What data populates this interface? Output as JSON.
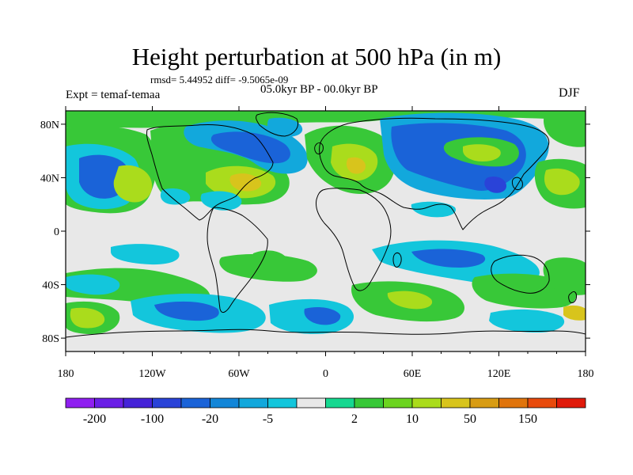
{
  "title": "Height perturbation at 500 hPa (in m)",
  "stats": "rmsd= 5.44952  diff= -9.5065e-09",
  "left_label": "Expt = temaf-temaa",
  "period": "05.0kyr BP - 00.0kyr BP",
  "season": "DJF",
  "lat_labels": [
    "80N",
    "40N",
    "0",
    "40S",
    "80S"
  ],
  "lon_labels": [
    "180",
    "120W",
    "60W",
    "0",
    "60E",
    "120E",
    "180"
  ],
  "colorbar": {
    "labels": [
      "-200",
      "-100",
      "-20",
      "-5",
      "2",
      "10",
      "50",
      "150"
    ],
    "colors": [
      "#8f1ff0",
      "#6a1fe6",
      "#4523d8",
      "#2a43d8",
      "#1a63d8",
      "#1286d8",
      "#12a8dc",
      "#13c6dc",
      "#e8e8e8",
      "#16d890",
      "#38c838",
      "#6cd420",
      "#aadc1c",
      "#d8c41c",
      "#d89c14",
      "#e0740c",
      "#e84a0c",
      "#e01a0a"
    ]
  },
  "colors": {
    "background": "#e8e8e8",
    "coast": "#000000"
  }
}
